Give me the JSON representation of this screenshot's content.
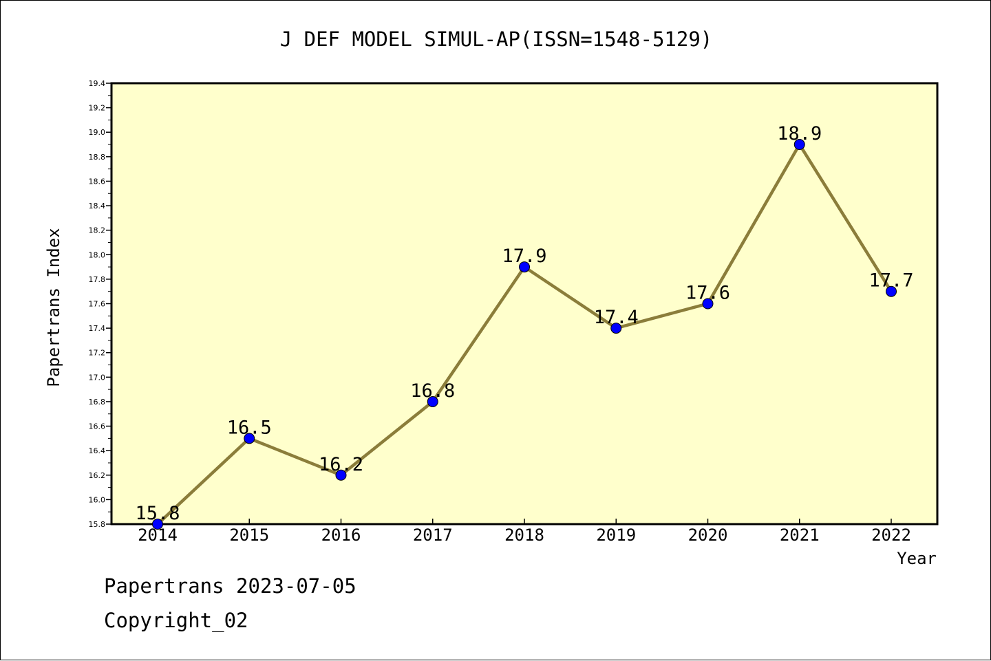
{
  "chart_data": {
    "type": "line",
    "title": "J DEF MODEL SIMUL-AP(ISSN=1548-5129)",
    "xlabel": "Year",
    "ylabel": "Papertrans Index",
    "categories": [
      "2014",
      "2015",
      "2016",
      "2017",
      "2018",
      "2019",
      "2020",
      "2021",
      "2022"
    ],
    "series": [
      {
        "values": [
          15.8,
          16.5,
          16.2,
          16.8,
          17.9,
          17.4,
          17.6,
          18.9,
          17.7
        ],
        "data_labels": [
          "15.8",
          "16.5",
          "16.2",
          "16.8",
          "17.9",
          "17.4",
          "17.6",
          "18.9",
          "17.7"
        ]
      }
    ],
    "ylim": [
      15.8,
      19.4
    ],
    "yticks": [
      "15.8",
      "16.0",
      "16.2",
      "16.4",
      "16.6",
      "16.8",
      "17.0",
      "17.2",
      "17.4",
      "17.6",
      "17.8",
      "18.0",
      "18.2",
      "18.4",
      "18.6",
      "18.8",
      "19.0",
      "19.2",
      "19.4"
    ],
    "grid": false,
    "legend": "none",
    "colors": {
      "plot_background": "#ffffcc",
      "line": "#8b7d3a",
      "marker": "#0000ff"
    }
  },
  "footer": {
    "line1": "Papertrans 2023-07-05",
    "line2": "Copyright_02"
  }
}
